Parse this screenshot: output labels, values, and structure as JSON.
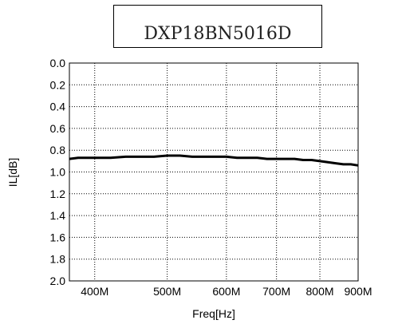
{
  "chart_data": {
    "type": "line",
    "title": "DXP18BN5016D",
    "xlabel": "Freq[Hz]",
    "ylabel": "IL[dB]",
    "x_scale": "log",
    "xlim": [
      370000000,
      900000000
    ],
    "ylim": [
      2.0,
      0.0
    ],
    "y_inverted": true,
    "grid": true,
    "x_ticks": [
      {
        "value": 400000000,
        "label": "400M"
      },
      {
        "value": 500000000,
        "label": "500M"
      },
      {
        "value": 600000000,
        "label": "600M"
      },
      {
        "value": 700000000,
        "label": "700M"
      },
      {
        "value": 800000000,
        "label": "800M"
      },
      {
        "value": 900000000,
        "label": "900M"
      }
    ],
    "y_ticks": [
      "0.0",
      "0.2",
      "0.4",
      "0.6",
      "0.8",
      "1.0",
      "1.2",
      "1.4",
      "1.6",
      "1.8",
      "2.0"
    ],
    "series": [
      {
        "color": "#000000",
        "x": [
          370000000,
          380000000,
          400000000,
          420000000,
          440000000,
          460000000,
          480000000,
          500000000,
          520000000,
          540000000,
          560000000,
          580000000,
          600000000,
          620000000,
          640000000,
          660000000,
          680000000,
          700000000,
          720000000,
          740000000,
          760000000,
          780000000,
          800000000,
          820000000,
          840000000,
          860000000,
          880000000,
          900000000
        ],
        "y": [
          0.88,
          0.87,
          0.87,
          0.87,
          0.86,
          0.86,
          0.86,
          0.85,
          0.85,
          0.86,
          0.86,
          0.86,
          0.86,
          0.87,
          0.87,
          0.87,
          0.88,
          0.88,
          0.88,
          0.88,
          0.89,
          0.89,
          0.9,
          0.91,
          0.92,
          0.93,
          0.93,
          0.94
        ]
      }
    ]
  }
}
